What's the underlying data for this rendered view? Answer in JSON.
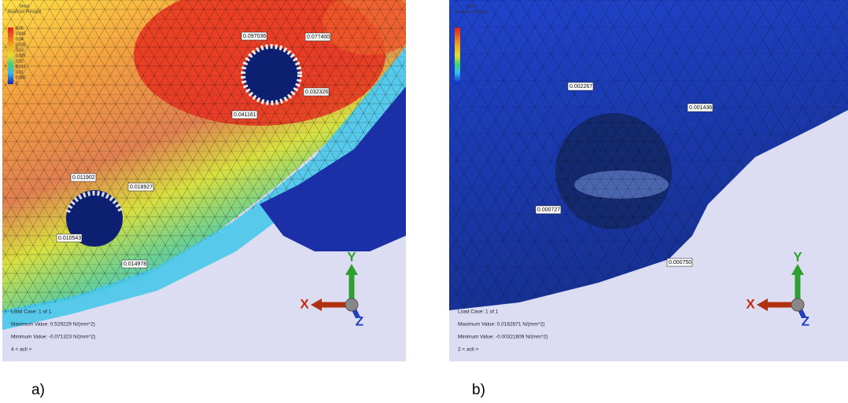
{
  "panels": [
    {
      "caption": "a)",
      "legend": {
        "title": [
          "Shear",
          "Maximum Principal"
        ],
        "ticks": [
          "0.05",
          "0.045",
          "0.04",
          "0.035",
          "0.03",
          "0.025",
          "0.02",
          "0.015",
          "0.01",
          "0.005",
          "0"
        ]
      },
      "labels": [
        "0.097036",
        "0.077400",
        "0.041161",
        "0.032326",
        "0.011902",
        "0.018927",
        "0.010543",
        "0.014978"
      ],
      "info": [
        "Load Case:  1 of 1",
        "Maximum Value: 0.529229 N/(mm^2)",
        "Minimum Value: -0.071323 N/(mm^2)",
        "4 < acli >"
      ],
      "axes": {
        "x": "X",
        "y": "Y",
        "z": "Z"
      }
    },
    {
      "caption": "b)",
      "legend": {
        "title": [
          "Shear",
          "Maximum Principal"
        ]
      },
      "labels": [
        "0.002267",
        "0.001436",
        "0.000727",
        "0.000750"
      ],
      "info": [
        "Load Case:  1 of 1",
        "Maximum Value: 0.0182671 N/(mm^2)",
        "Minimum Value: -0.00321609 N/(mm^2)",
        "2 < acli >"
      ],
      "axes": {
        "x": "X",
        "y": "Y",
        "z": "Z"
      }
    }
  ]
}
